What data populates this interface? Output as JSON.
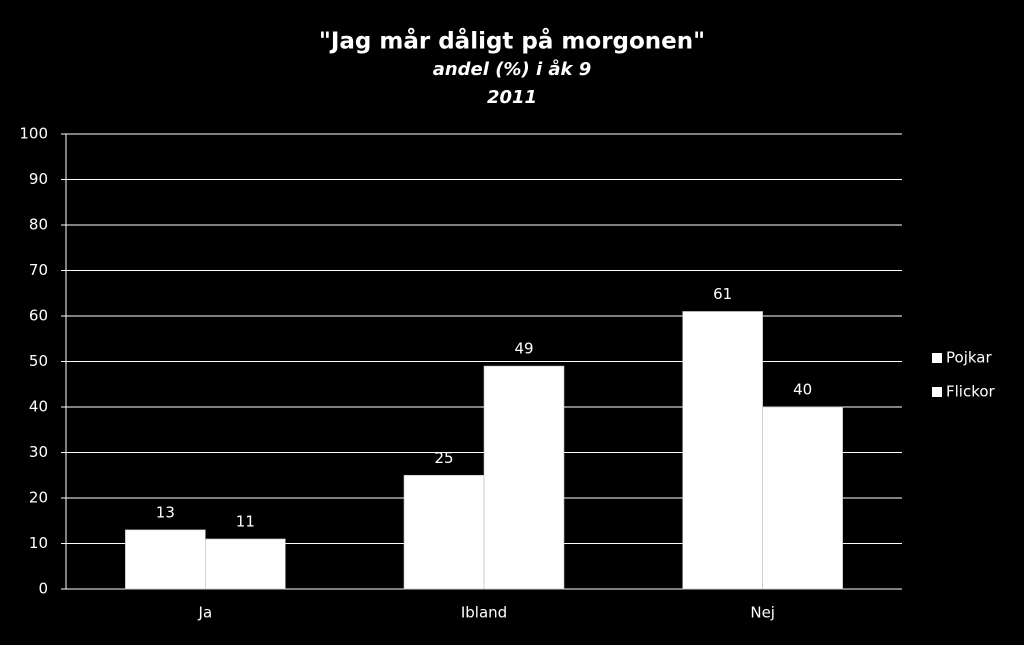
{
  "chart_data": {
    "type": "bar",
    "title": "\"Jag mår dåligt på morgonen\"",
    "subtitle": "andel (%) i åk 9",
    "subtitle2": "2011",
    "categories": [
      "Ja",
      "Ibland",
      "Nej"
    ],
    "series": [
      {
        "name": "Pojkar",
        "color": "#ffffff",
        "values": [
          13,
          25,
          61
        ]
      },
      {
        "name": "Flickor",
        "color": "#ffffff",
        "values": [
          11,
          49,
          40
        ]
      }
    ],
    "ylim": [
      0,
      100
    ],
    "yticks": [
      0,
      10,
      20,
      30,
      40,
      50,
      60,
      70,
      80,
      90,
      100
    ],
    "grid": true,
    "legend": "right"
  }
}
